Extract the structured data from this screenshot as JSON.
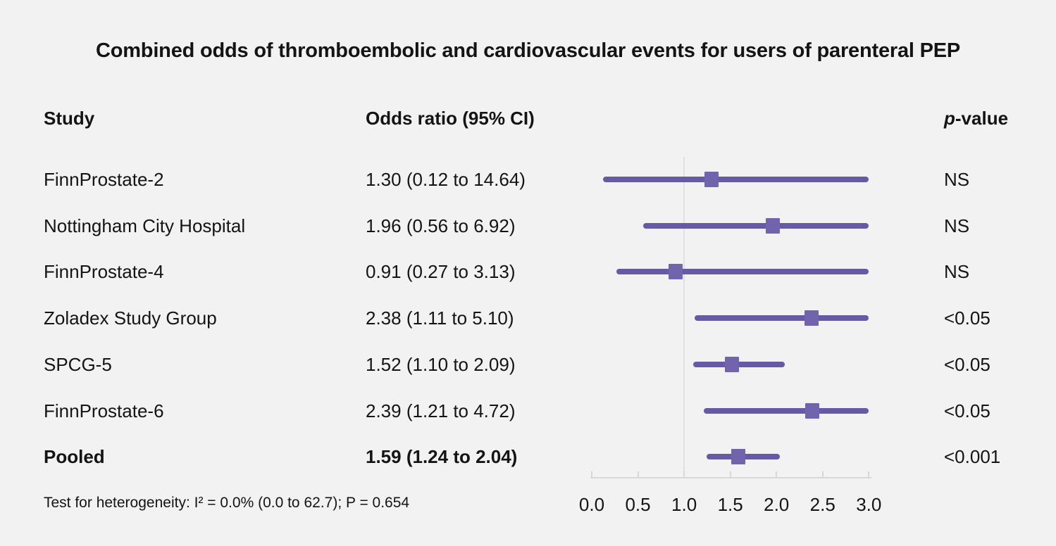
{
  "chart_data": {
    "type": "scatter",
    "variant": "forest-plot",
    "title": "Combined odds of thromboembolic and cardiovascular events for users of parenteral PEP",
    "columns": {
      "study": "Study",
      "or": "Odds ratio (95% CI)",
      "p": "p-value",
      "p_italic": "p",
      "p_rest": "-value"
    },
    "rows": [
      {
        "study": "FinnProstate-2",
        "or_text": "1.30 (0.12 to 14.64)",
        "or": 1.3,
        "ci_low": 0.12,
        "ci_high": 14.64,
        "p": "NS",
        "bold": false
      },
      {
        "study": "Nottingham City Hospital",
        "or_text": "1.96 (0.56 to 6.92)",
        "or": 1.96,
        "ci_low": 0.56,
        "ci_high": 6.92,
        "p": "NS",
        "bold": false
      },
      {
        "study": "FinnProstate-4",
        "or_text": "0.91 (0.27 to 3.13)",
        "or": 0.91,
        "ci_low": 0.27,
        "ci_high": 3.13,
        "p": "NS",
        "bold": false
      },
      {
        "study": "Zoladex Study Group",
        "or_text": "2.38 (1.11 to 5.10)",
        "or": 2.38,
        "ci_low": 1.11,
        "ci_high": 5.1,
        "p": "<0.05",
        "bold": false
      },
      {
        "study": "SPCG-5",
        "or_text": "1.52 (1.10 to 2.09)",
        "or": 1.52,
        "ci_low": 1.1,
        "ci_high": 2.09,
        "p": "<0.05",
        "bold": false
      },
      {
        "study": "FinnProstate-6",
        "or_text": "2.39 (1.21 to 4.72)",
        "or": 2.39,
        "ci_low": 1.21,
        "ci_high": 4.72,
        "p": "<0.05",
        "bold": false
      },
      {
        "study": "Pooled",
        "or_text": "1.59 (1.24 to 2.04)",
        "or": 1.59,
        "ci_low": 1.24,
        "ci_high": 2.04,
        "p": "<0.001",
        "bold": true
      }
    ],
    "x_axis": {
      "min": 0.0,
      "max": 3.0,
      "tick_labels": [
        "0.0",
        "0.5",
        "1.0",
        "1.5",
        "2.0",
        "2.5",
        "3.0"
      ],
      "reference_line": 1.0,
      "clip_max": 3.0,
      "grid": false
    },
    "footnote": "Test for heterogeneity: I² = 0.0% (0.0 to 62.7); P = 0.654"
  },
  "colors": {
    "bg": "#f2f2f2",
    "text": "#141414",
    "purple": "#675aa4",
    "marker": "#7163ac",
    "refline": "#dde0e4",
    "axis": "#d5d9dd"
  }
}
